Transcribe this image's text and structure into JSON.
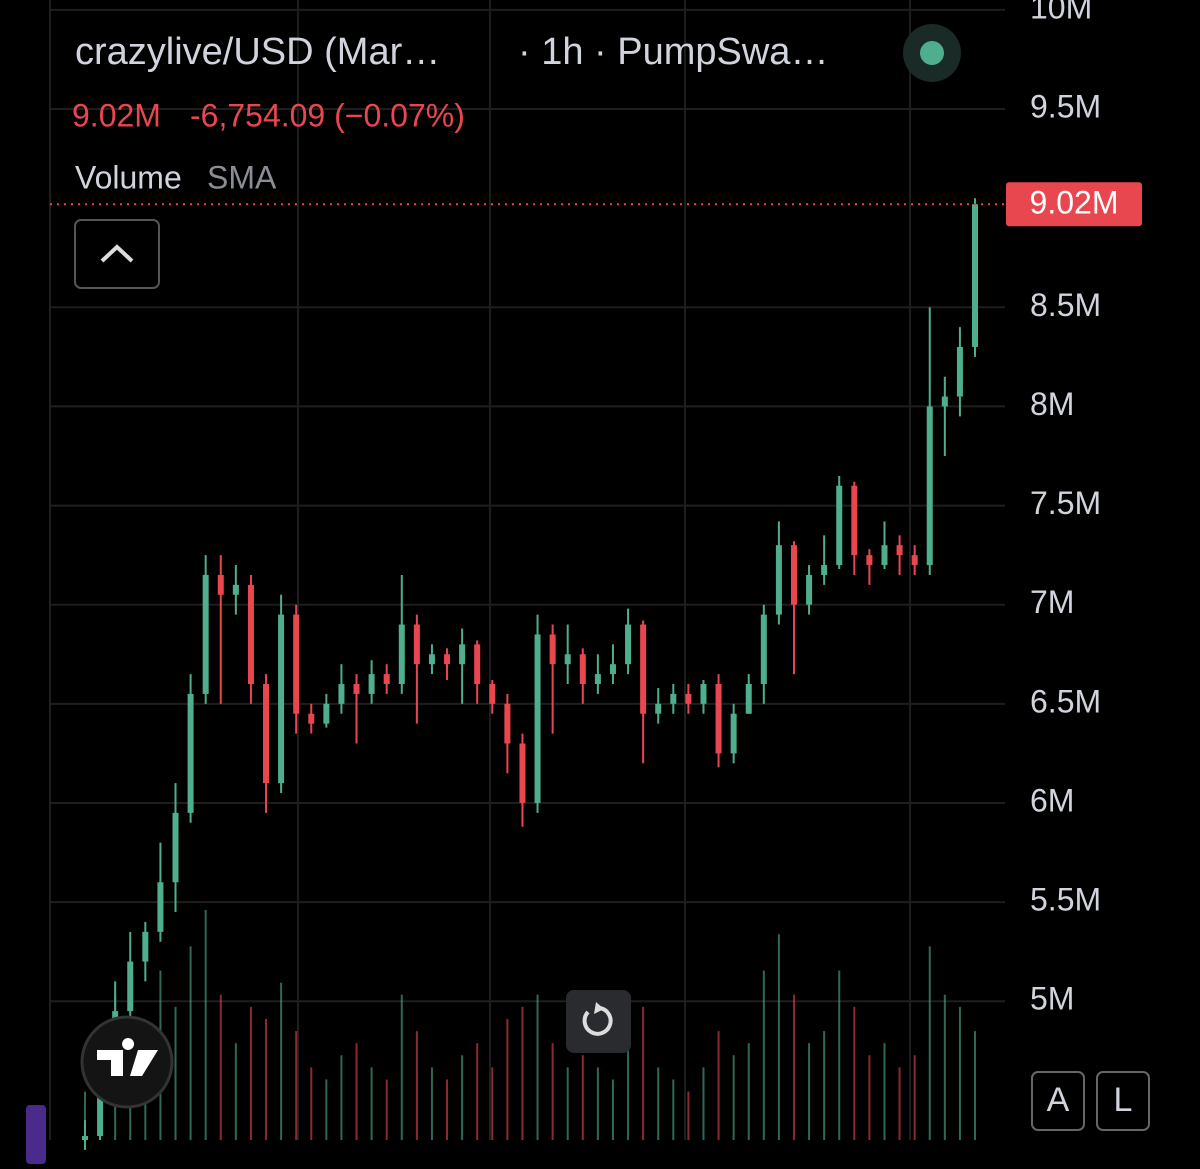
{
  "chart_data": {
    "type": "candlestick",
    "symbol": "crazylive/USD (Mar…",
    "interval": "· 1h · PumpSwa…",
    "last_price": {
      "value": 9.02,
      "label": "9.02M"
    },
    "change": "-6,754.09 (−0.07%)",
    "indicator": "Volume",
    "indicator_setting": "SMA",
    "buttons": [
      "A",
      "L"
    ],
    "up_color": "#4fae8e",
    "down_color": "#e9474f",
    "ylim": [
      4.3,
      10.05
    ],
    "yticks": [
      {
        "value": 10,
        "label": "10M"
      },
      {
        "value": 9.5,
        "label": "9.5M"
      },
      {
        "value": 8.5,
        "label": "8.5M"
      },
      {
        "value": 8,
        "label": "8M"
      },
      {
        "value": 7.5,
        "label": "7.5M"
      },
      {
        "value": 7,
        "label": "7M"
      },
      {
        "value": 6.5,
        "label": "6.5M"
      },
      {
        "value": 6,
        "label": "6M"
      },
      {
        "value": 5.5,
        "label": "5.5M"
      },
      {
        "value": 5,
        "label": "5M"
      }
    ],
    "grid": true,
    "open": [
      4.3,
      4.32,
      4.6,
      4.95,
      5.2,
      5.35,
      5.6,
      5.95,
      6.55,
      7.15,
      7.05,
      7.1,
      6.6,
      6.1,
      6.95,
      6.45,
      6.4,
      6.5,
      6.6,
      6.55,
      6.65,
      6.6,
      6.9,
      6.7,
      6.75,
      6.7,
      6.8,
      6.6,
      6.5,
      6.3,
      6.0,
      6.85,
      6.7,
      6.75,
      6.6,
      6.65,
      6.7,
      6.9,
      6.45,
      6.5,
      6.55,
      6.5,
      6.6,
      6.25,
      6.45,
      6.6,
      6.95,
      7.3,
      7.0,
      7.15,
      7.2,
      7.6,
      7.25,
      7.2,
      7.3,
      7.25,
      7.2,
      8.0,
      8.05,
      8.3
    ],
    "high": [
      4.4,
      4.7,
      5.1,
      5.35,
      5.4,
      5.8,
      6.1,
      6.65,
      7.25,
      7.25,
      7.2,
      7.15,
      6.65,
      7.05,
      7.0,
      6.5,
      6.55,
      6.7,
      6.65,
      6.72,
      6.7,
      7.15,
      6.95,
      6.8,
      6.78,
      6.88,
      6.82,
      6.62,
      6.55,
      6.35,
      6.95,
      6.9,
      6.9,
      6.78,
      6.75,
      6.8,
      6.98,
      6.92,
      6.58,
      6.6,
      6.6,
      6.62,
      6.65,
      6.5,
      6.65,
      7.0,
      7.42,
      7.32,
      7.2,
      7.35,
      7.65,
      7.62,
      7.28,
      7.42,
      7.35,
      7.3,
      8.5,
      8.15,
      8.4,
      9.05
    ],
    "low": [
      4.25,
      4.3,
      4.55,
      4.9,
      5.1,
      5.3,
      5.45,
      5.9,
      6.5,
      6.5,
      6.95,
      6.5,
      5.95,
      6.05,
      6.35,
      6.35,
      6.38,
      6.45,
      6.3,
      6.5,
      6.55,
      6.55,
      6.4,
      6.65,
      6.62,
      6.5,
      6.5,
      6.45,
      6.15,
      5.88,
      5.95,
      6.35,
      6.6,
      6.5,
      6.55,
      6.6,
      6.65,
      6.2,
      6.4,
      6.45,
      6.45,
      6.45,
      6.18,
      6.2,
      6.45,
      6.5,
      6.9,
      6.65,
      6.95,
      7.1,
      7.18,
      7.15,
      7.1,
      7.18,
      7.15,
      7.15,
      7.15,
      7.75,
      7.95,
      8.25
    ],
    "close": [
      4.32,
      4.6,
      4.95,
      5.2,
      5.35,
      5.6,
      5.95,
      6.55,
      7.15,
      7.05,
      7.1,
      6.6,
      6.1,
      6.95,
      6.45,
      6.4,
      6.5,
      6.6,
      6.55,
      6.65,
      6.6,
      6.9,
      6.7,
      6.75,
      6.7,
      6.8,
      6.6,
      6.5,
      6.3,
      6.0,
      6.85,
      6.7,
      6.75,
      6.6,
      6.65,
      6.7,
      6.9,
      6.45,
      6.5,
      6.55,
      6.5,
      6.6,
      6.25,
      6.45,
      6.6,
      6.95,
      7.3,
      7.0,
      7.15,
      7.2,
      7.6,
      7.25,
      7.2,
      7.3,
      7.25,
      7.2,
      8.0,
      8.05,
      8.3,
      9.02
    ],
    "volume": [
      20,
      45,
      60,
      50,
      35,
      70,
      55,
      80,
      95,
      60,
      40,
      55,
      50,
      65,
      45,
      30,
      25,
      35,
      40,
      30,
      25,
      60,
      45,
      30,
      25,
      35,
      40,
      30,
      50,
      55,
      60,
      40,
      30,
      35,
      30,
      25,
      45,
      55,
      30,
      25,
      20,
      30,
      45,
      35,
      40,
      70,
      85,
      60,
      40,
      45,
      70,
      55,
      35,
      40,
      30,
      35,
      80,
      60,
      55,
      45
    ]
  }
}
